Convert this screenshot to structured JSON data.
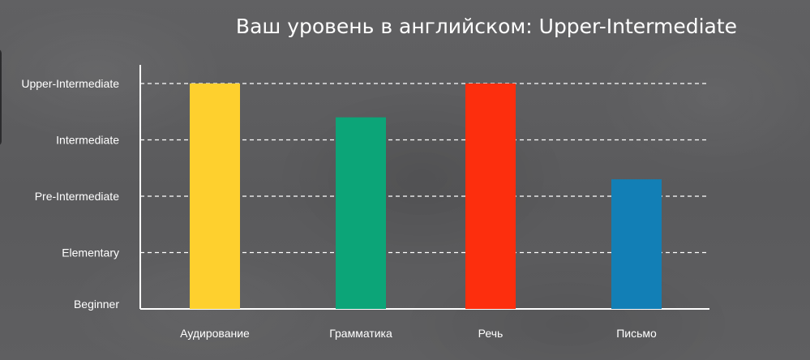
{
  "chart_data": {
    "type": "bar",
    "title": "Ваш уровень в английском: Upper-Intermediate",
    "categories": [
      "Аудирование",
      "Грамматика",
      "Речь",
      "Письмо"
    ],
    "y_levels": [
      "Beginner",
      "Elementary",
      "Pre-Intermediate",
      "Intermediate",
      "Upper-Intermediate"
    ],
    "values": [
      4,
      3.4,
      4,
      2.3
    ],
    "colors": [
      "#fed02e",
      "#0ca578",
      "#fd2e0d",
      "#127fb6"
    ],
    "ylim": [
      0,
      4
    ],
    "grid": true,
    "grid_style": "dashed",
    "legend": "none"
  }
}
